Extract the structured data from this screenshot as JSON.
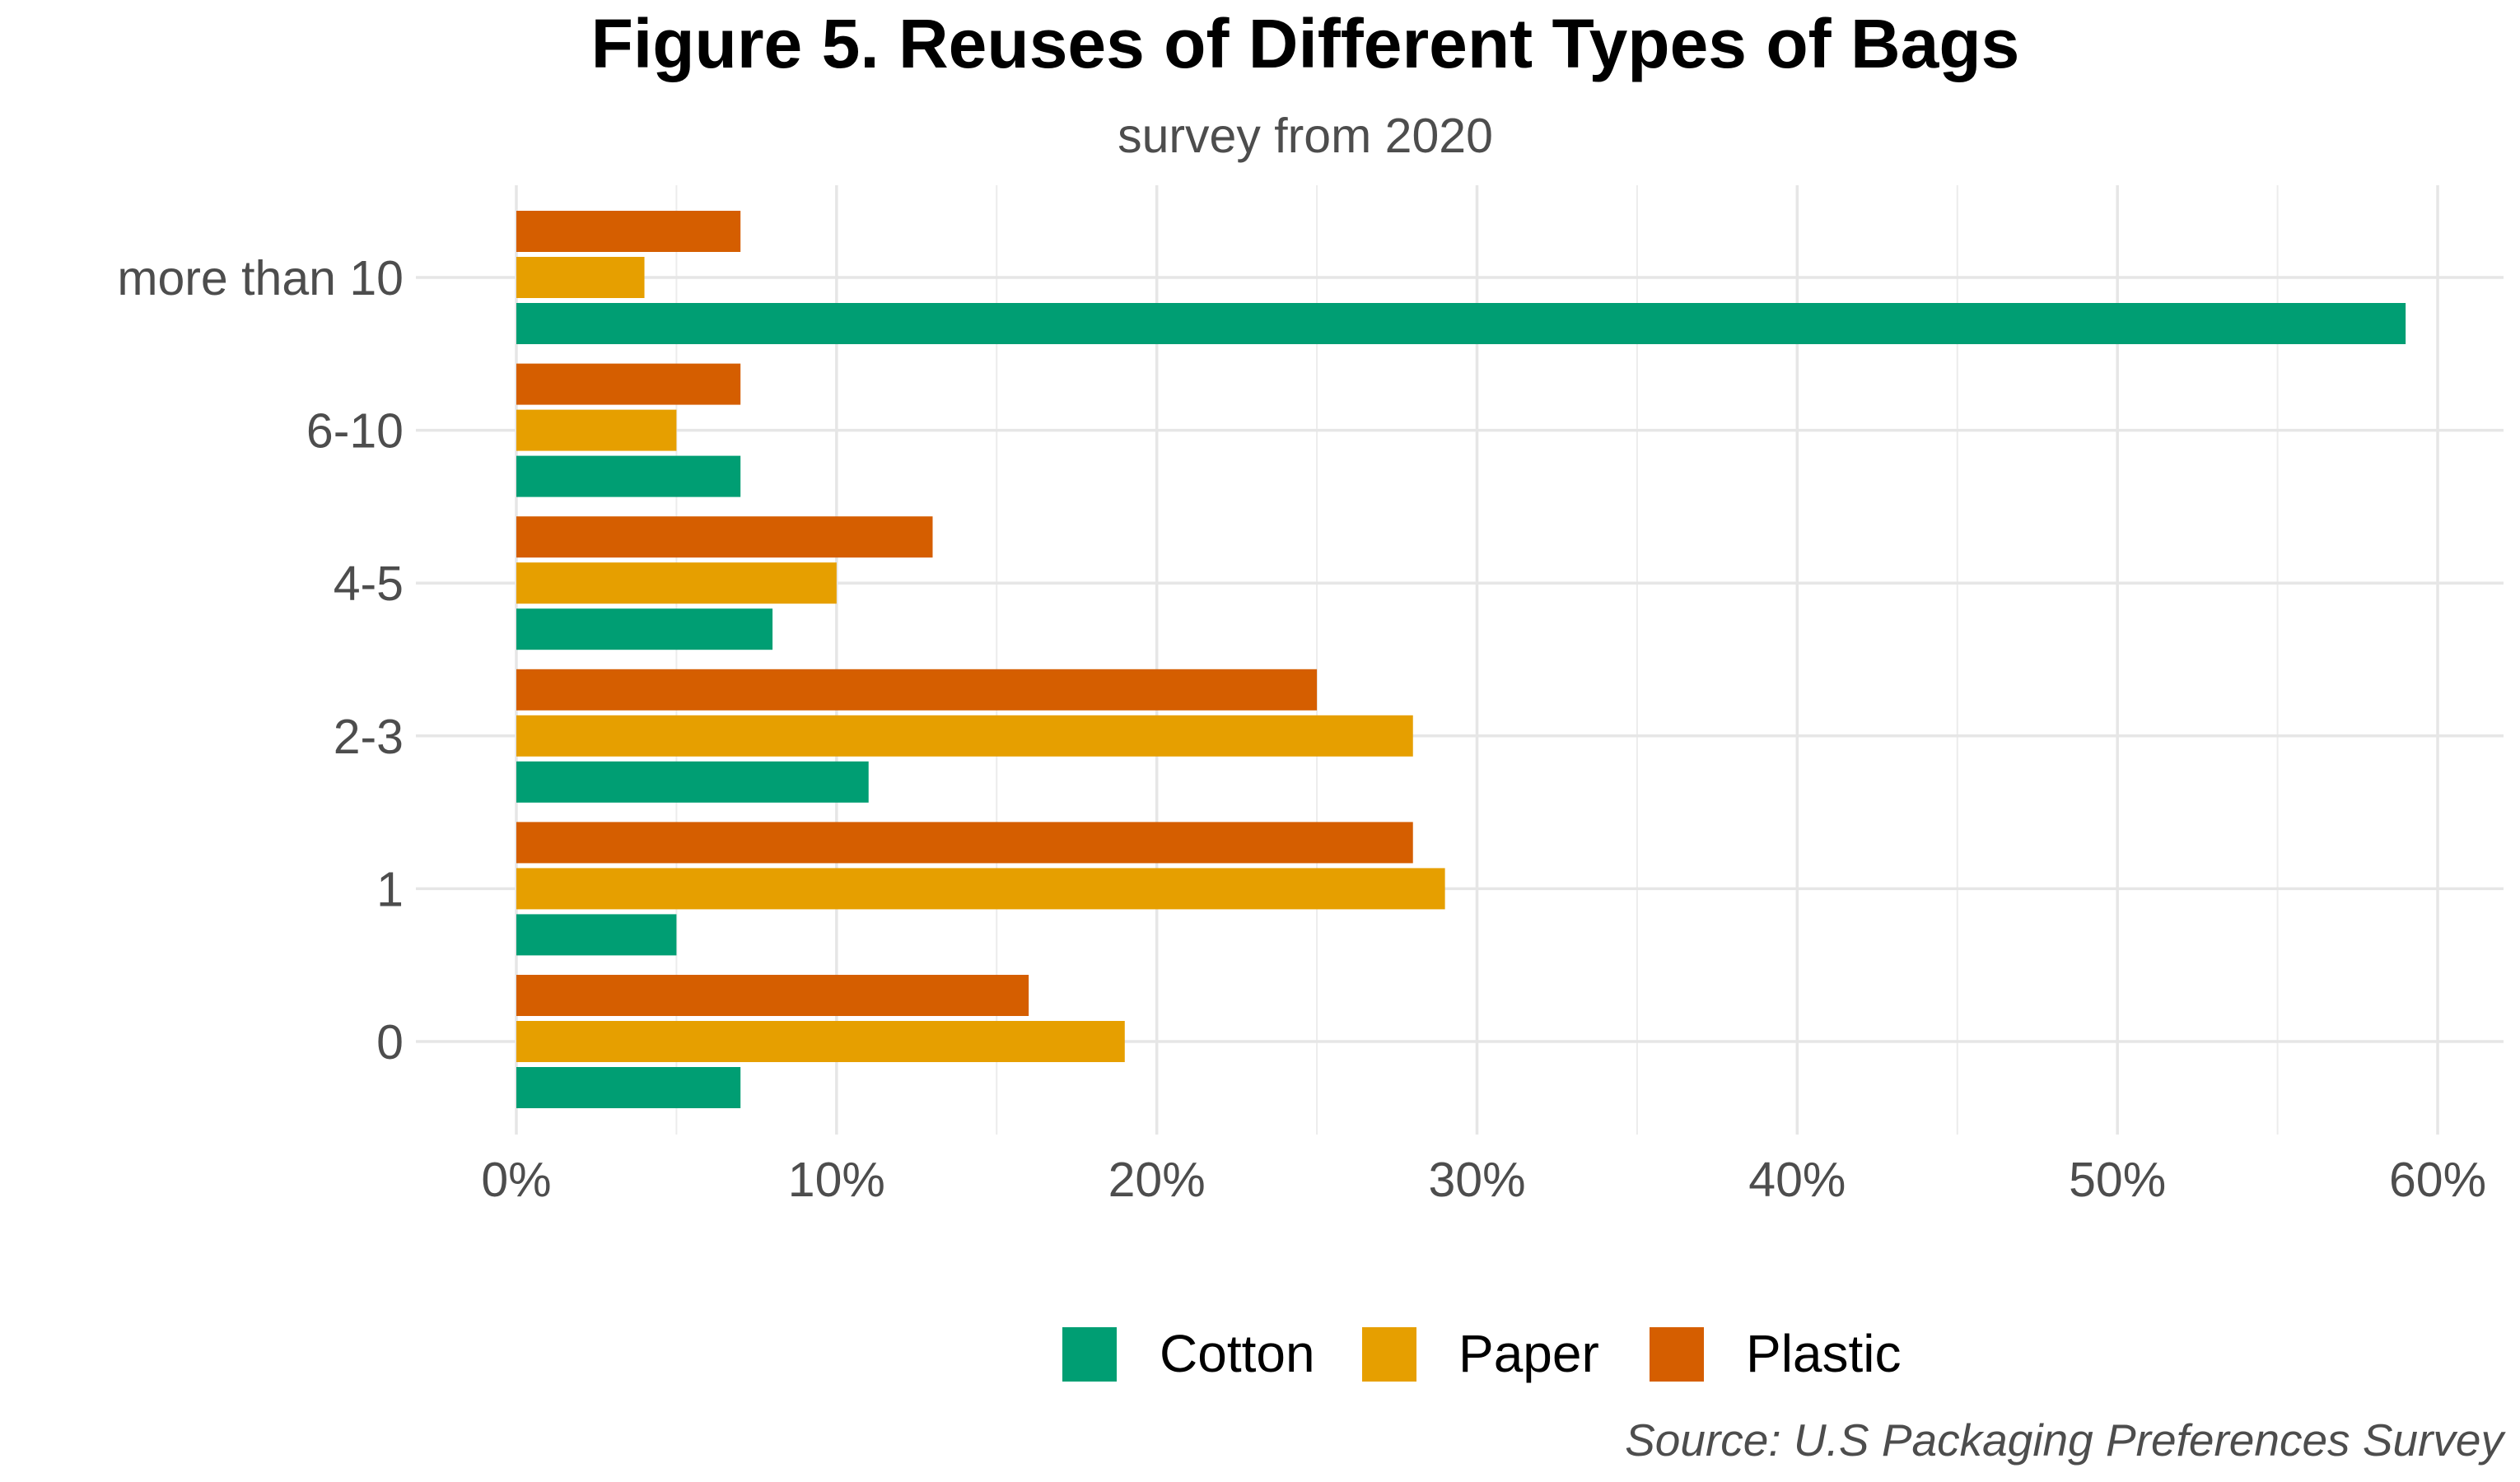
{
  "chart_data": {
    "type": "bar",
    "orientation": "horizontal",
    "title": "Figure 5. Reuses of Different Types of Bags",
    "subtitle": "survey from 2020",
    "caption": "Source: U.S Packaging Preferences Survey",
    "xlabel": "",
    "ylabel": "",
    "categories": [
      "0",
      "1",
      "2-3",
      "4-5",
      "6-10",
      "more than 10"
    ],
    "series": [
      {
        "name": "Cotton",
        "color": "#009E73",
        "values": [
          7,
          5,
          11,
          8,
          7,
          59
        ]
      },
      {
        "name": "Paper",
        "color": "#E69F00",
        "values": [
          19,
          29,
          28,
          10,
          5,
          4
        ]
      },
      {
        "name": "Plastic",
        "color": "#D55E00",
        "values": [
          16,
          28,
          25,
          13,
          7,
          7
        ]
      }
    ],
    "xlim": [
      0,
      60
    ],
    "x_ticks": [
      0,
      10,
      20,
      30,
      40,
      50,
      60
    ],
    "x_tick_labels": [
      "0%",
      "10%",
      "20%",
      "30%",
      "40%",
      "50%",
      "60%"
    ],
    "grid": true,
    "legend_position": "bottom"
  }
}
